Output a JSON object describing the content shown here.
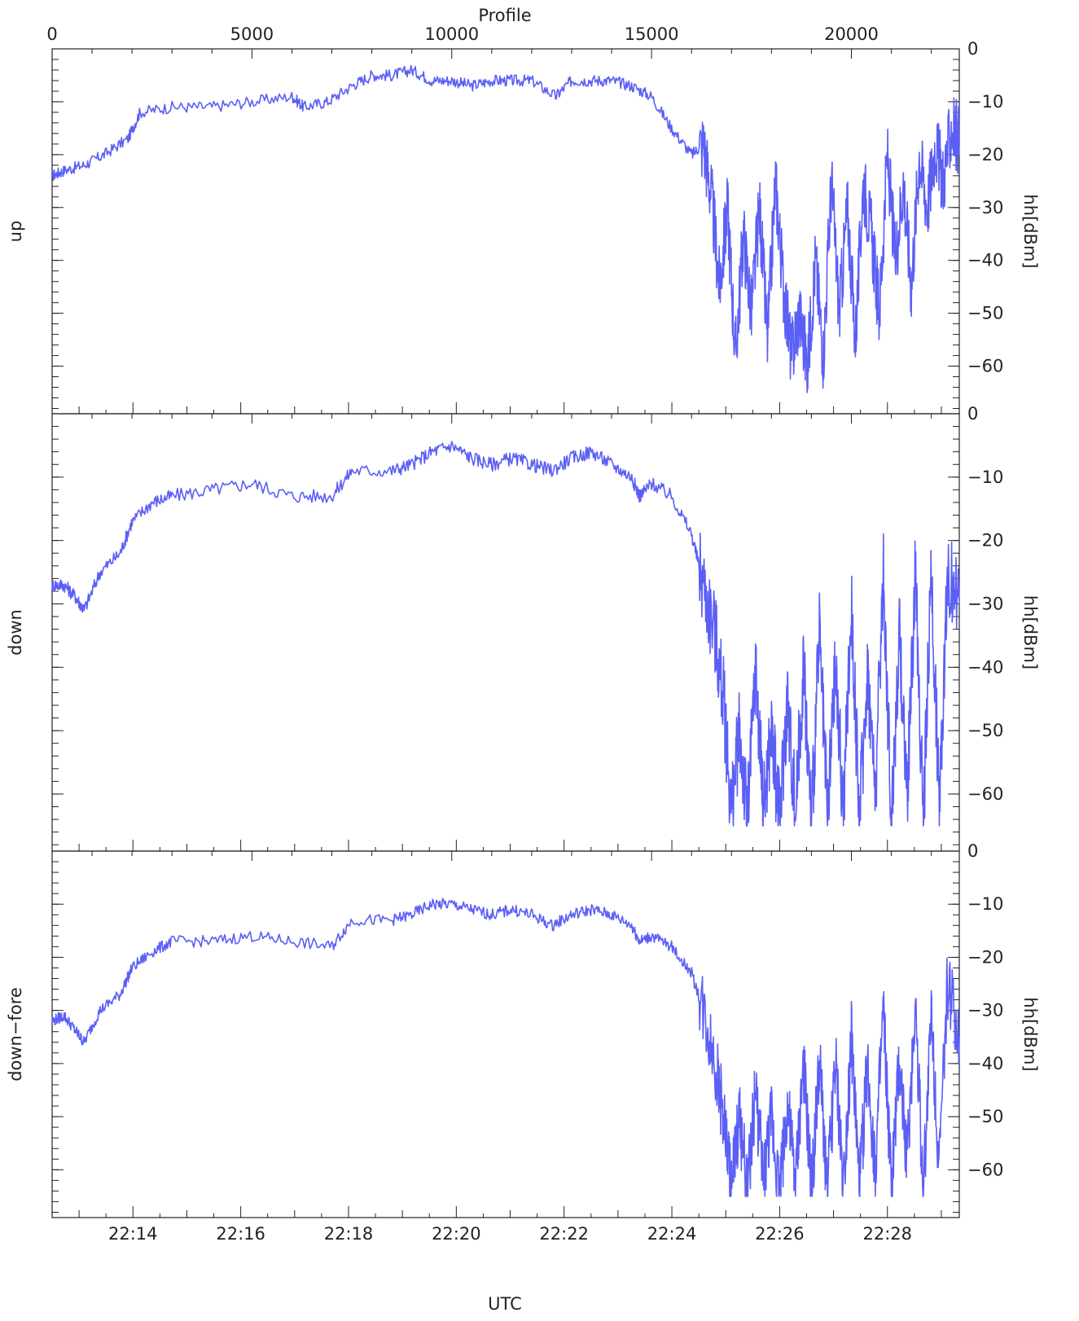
{
  "chart_data": {
    "type": "line",
    "title": "",
    "top_axis": {
      "label": "Profile",
      "range": [
        0,
        22700
      ],
      "ticks": [
        0,
        5000,
        10000,
        15000,
        20000
      ],
      "tick_labels": [
        "0",
        "5000",
        "10000",
        "15000",
        "20000"
      ]
    },
    "x_axis": {
      "label": "UTC",
      "range": [
        "22:12:30",
        "22:29:20"
      ],
      "ticks": [
        "22:14",
        "22:16",
        "22:18",
        "22:20",
        "22:22",
        "22:24",
        "22:26",
        "22:28"
      ],
      "tick_labels": [
        "22:14",
        "22:16",
        "22:18",
        "22:20",
        "22:22",
        "22:24",
        "22:26",
        "22:28"
      ]
    },
    "y_axis_right": {
      "label": "hh[dBm]",
      "ylim": [
        -69,
        0
      ],
      "ticks": [
        0,
        -10,
        -20,
        -30,
        -40,
        -50,
        -60
      ],
      "tick_labels": [
        "0",
        "−10",
        "−20",
        "−30",
        "−40",
        "−50",
        "−60"
      ]
    },
    "grid": false,
    "color": "#5b5ff5",
    "panels": [
      {
        "name": "up",
        "ylabel": "up",
        "x": [
          0,
          300,
          800,
          1300,
          1900,
          2200,
          3000,
          4000,
          5000,
          6000,
          6300,
          6900,
          7500,
          8000,
          8500,
          9000,
          9500,
          10000,
          10500,
          11000,
          11500,
          12000,
          12600,
          13000,
          13500,
          14000,
          14500,
          15000,
          15500,
          16000,
          16300,
          16500,
          16700,
          16900,
          17100,
          17300,
          17500,
          17700,
          17900,
          18100,
          18300,
          18500,
          18700,
          18900,
          19100,
          19300,
          19500,
          19700,
          19900,
          20100,
          20300,
          20500,
          20700,
          20900,
          21100,
          21300,
          21500,
          21700,
          21900,
          22100,
          22300,
          22500,
          22700
        ],
        "values": [
          -24,
          -23,
          -22,
          -20,
          -17,
          -12,
          -11,
          -11,
          -10,
          -9,
          -11,
          -10,
          -7,
          -5,
          -5,
          -4,
          -6,
          -6,
          -7,
          -6,
          -6,
          -6,
          -9,
          -6,
          -6,
          -6,
          -7,
          -9,
          -15,
          -20,
          -18,
          -28,
          -45,
          -30,
          -58,
          -35,
          -50,
          -30,
          -55,
          -25,
          -45,
          -58,
          -50,
          -60,
          -40,
          -58,
          -25,
          -50,
          -30,
          -55,
          -25,
          -35,
          -50,
          -20,
          -40,
          -25,
          -45,
          -20,
          -30,
          -18,
          -25,
          -15,
          -17
        ]
      },
      {
        "name": "down",
        "ylabel": "down",
        "x": [
          0,
          300,
          600,
          800,
          1200,
          1700,
          2000,
          2500,
          3000,
          4000,
          5000,
          6000,
          7000,
          7500,
          8500,
          9000,
          9500,
          10000,
          10500,
          11000,
          11500,
          12000,
          12500,
          13000,
          13500,
          14000,
          14500,
          14700,
          15000,
          15500,
          16000,
          16300,
          16600,
          16800,
          17000,
          17200,
          17400,
          17600,
          17800,
          18000,
          18200,
          18400,
          18600,
          18800,
          19000,
          19200,
          19400,
          19600,
          19800,
          20000,
          20200,
          20400,
          20600,
          20800,
          21000,
          21200,
          21400,
          21600,
          21800,
          22000,
          22200,
          22400,
          22700
        ],
        "values": [
          -27,
          -27,
          -29,
          -31,
          -25,
          -22,
          -17,
          -14,
          -13,
          -12,
          -11,
          -13,
          -13,
          -9,
          -9,
          -8,
          -6,
          -5,
          -7,
          -8,
          -7,
          -8,
          -9,
          -7,
          -6,
          -8,
          -10,
          -13,
          -11,
          -13,
          -19,
          -27,
          -35,
          -45,
          -63,
          -50,
          -64,
          -40,
          -62,
          -50,
          -64,
          -45,
          -63,
          -40,
          -64,
          -35,
          -64,
          -40,
          -63,
          -30,
          -64,
          -40,
          -60,
          -25,
          -64,
          -35,
          -60,
          -25,
          -64,
          -25,
          -62,
          -25,
          -30
        ]
      },
      {
        "name": "down-fore",
        "ylabel": "down−fore",
        "x": [
          0,
          300,
          600,
          800,
          1200,
          1700,
          2000,
          2500,
          3000,
          4000,
          5000,
          6000,
          7000,
          7500,
          8500,
          9000,
          9500,
          10000,
          10500,
          11000,
          11500,
          12000,
          12500,
          13000,
          13500,
          14000,
          14500,
          14700,
          15000,
          15500,
          16000,
          16300,
          16600,
          16800,
          17000,
          17200,
          17400,
          17600,
          17800,
          18000,
          18200,
          18400,
          18600,
          18800,
          19000,
          19200,
          19400,
          19600,
          19800,
          20000,
          20200,
          20400,
          20600,
          20800,
          21000,
          21200,
          21400,
          21600,
          21800,
          22000,
          22200,
          22400,
          22700
        ],
        "values": [
          -32,
          -31,
          -34,
          -36,
          -30,
          -27,
          -22,
          -19,
          -17,
          -17,
          -16,
          -17,
          -18,
          -13,
          -13,
          -12,
          -10,
          -10,
          -11,
          -12,
          -11,
          -12,
          -14,
          -12,
          -11,
          -12,
          -14,
          -17,
          -16,
          -18,
          -23,
          -30,
          -40,
          -50,
          -63,
          -50,
          -64,
          -45,
          -62,
          -50,
          -64,
          -48,
          -63,
          -40,
          -64,
          -40,
          -64,
          -40,
          -63,
          -35,
          -64,
          -40,
          -60,
          -30,
          -64,
          -40,
          -58,
          -28,
          -64,
          -30,
          -60,
          -25,
          -35
        ]
      }
    ]
  }
}
